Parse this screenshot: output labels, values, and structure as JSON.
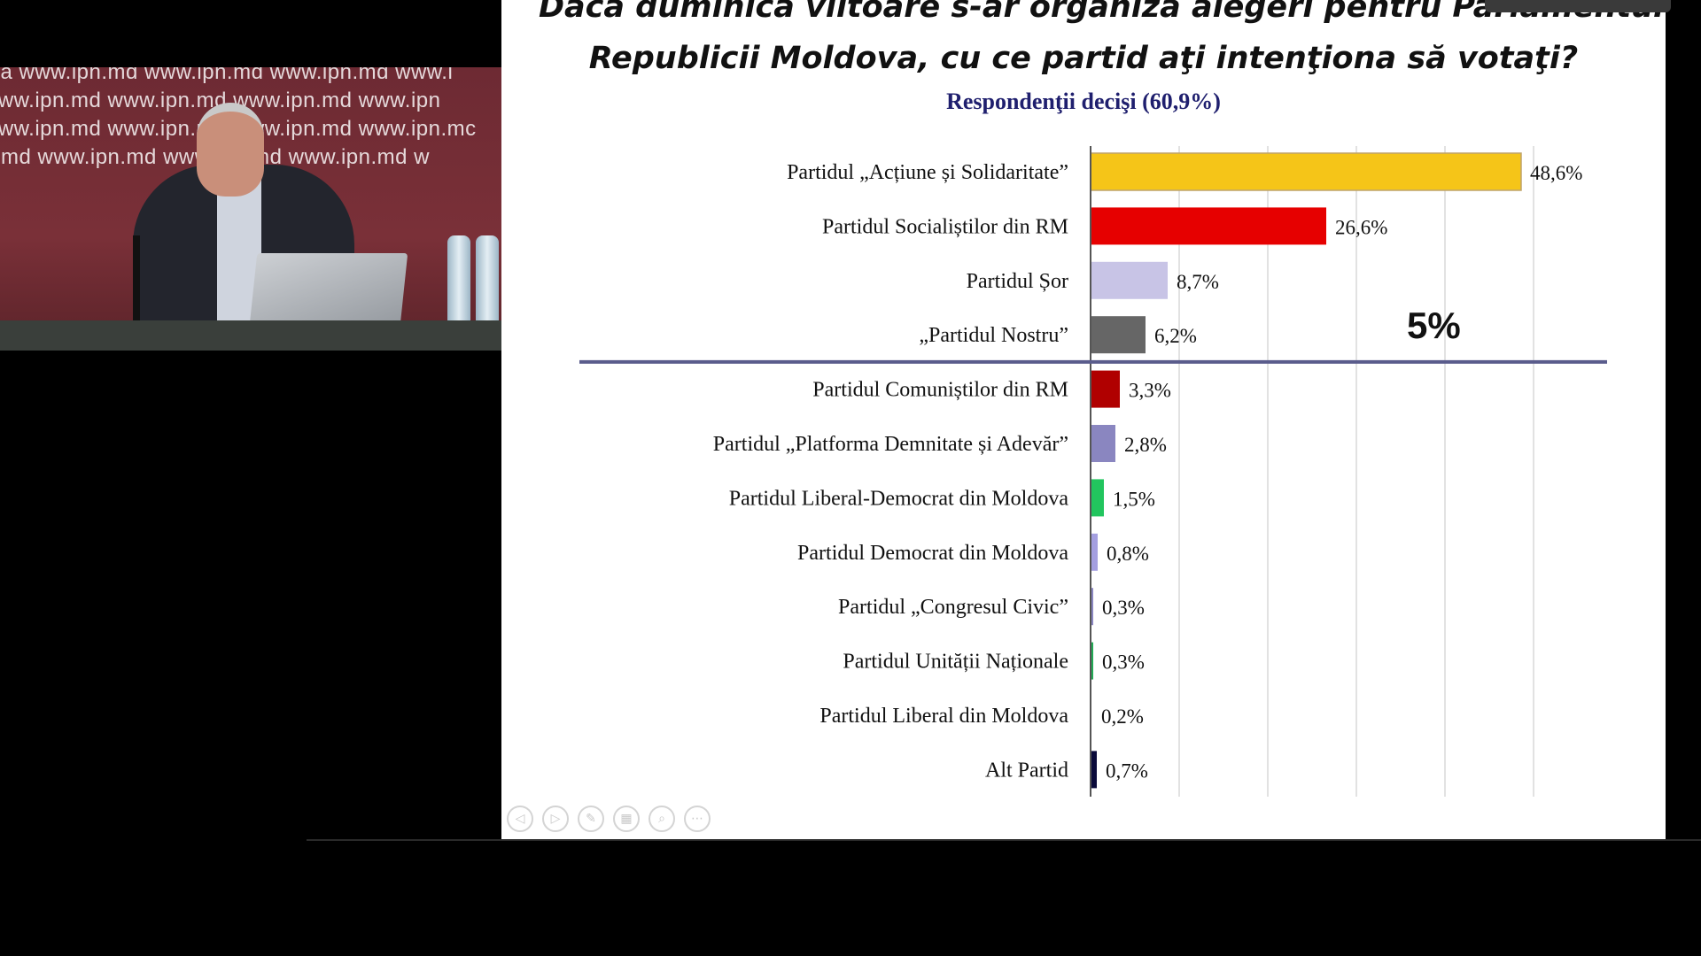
{
  "webcam": {
    "watermark_rows": [
      "ma  www.ipn.md  www.ipn.md  www.ipn.md  www.i",
      "  www.ipn.md  www.ipn.md  www.ipn.md  www.ipn",
      "www.ipn.md  www.ipn.md  www.ipn.md  www.ipn.mc",
      "n.md  www.ipn.md  www.ipn.md  www.ipn.md  w"
    ]
  },
  "slide": {
    "title_line1": "Dacă duminica viitoare s-ar organiza alegeri pentru Parlamentul",
    "title_line2": "Republicii Moldova, cu ce partid aţi intenţiona să votaţi?",
    "subtitle": "Respondenţii decişi (60,9%)",
    "threshold_label": "5%"
  },
  "controls": [
    {
      "name": "previous-slide-button",
      "icon": "◁"
    },
    {
      "name": "next-slide-button",
      "icon": "▷"
    },
    {
      "name": "pen-tool-button",
      "icon": "✎"
    },
    {
      "name": "slides-grid-button",
      "icon": "▦"
    },
    {
      "name": "zoom-button",
      "icon": "⌕"
    },
    {
      "name": "more-options-button",
      "icon": "⋯"
    }
  ],
  "chart_data": {
    "type": "bar",
    "orientation": "horizontal",
    "title": "Dacă duminica viitoare s-ar organiza alegeri pentru Parlamentul Republicii Moldova, cu ce partid aţi intenţiona să votaţi?",
    "subtitle": "Respondenţii decişi (60,9%)",
    "categories": [
      "Partidul „Acțiune și Solidaritate”",
      "Partidul Socialiștilor din RM",
      "Partidul Șor",
      "„Partidul Nostru”",
      "Partidul Comuniștilor din RM",
      "Partidul „Platforma Demnitate și Adevăr”",
      "Partidul Liberal-Democrat din Moldova",
      "Partidul Democrat din Moldova",
      "Partidul „Congresul Civic”",
      "Partidul Unității Naționale",
      "Partidul Liberal din Moldova",
      "Alt Partid"
    ],
    "values": [
      48.6,
      26.6,
      8.7,
      6.2,
      3.3,
      2.8,
      1.5,
      0.8,
      0.3,
      0.3,
      0.2,
      0.7
    ],
    "value_labels": [
      "48,6%",
      "26,6%",
      "8,7%",
      "6,2%",
      "3,3%",
      "2,8%",
      "1,5%",
      "0,8%",
      "0,3%",
      "0,3%",
      "0,2%",
      "0,7%"
    ],
    "colors": [
      "#F5C518",
      "#E60000",
      "#C8C4E6",
      "#666666",
      "#B00000",
      "#8A86C0",
      "#22C55E",
      "#A49FE0",
      "#8A86C0",
      "#22AA55",
      "#FFFFFF",
      "#0A0A3A"
    ],
    "xlim": [
      0,
      50
    ],
    "grid": true,
    "threshold": {
      "value": 5,
      "label": "5%",
      "after_category_index": 3
    },
    "legend": "none"
  }
}
